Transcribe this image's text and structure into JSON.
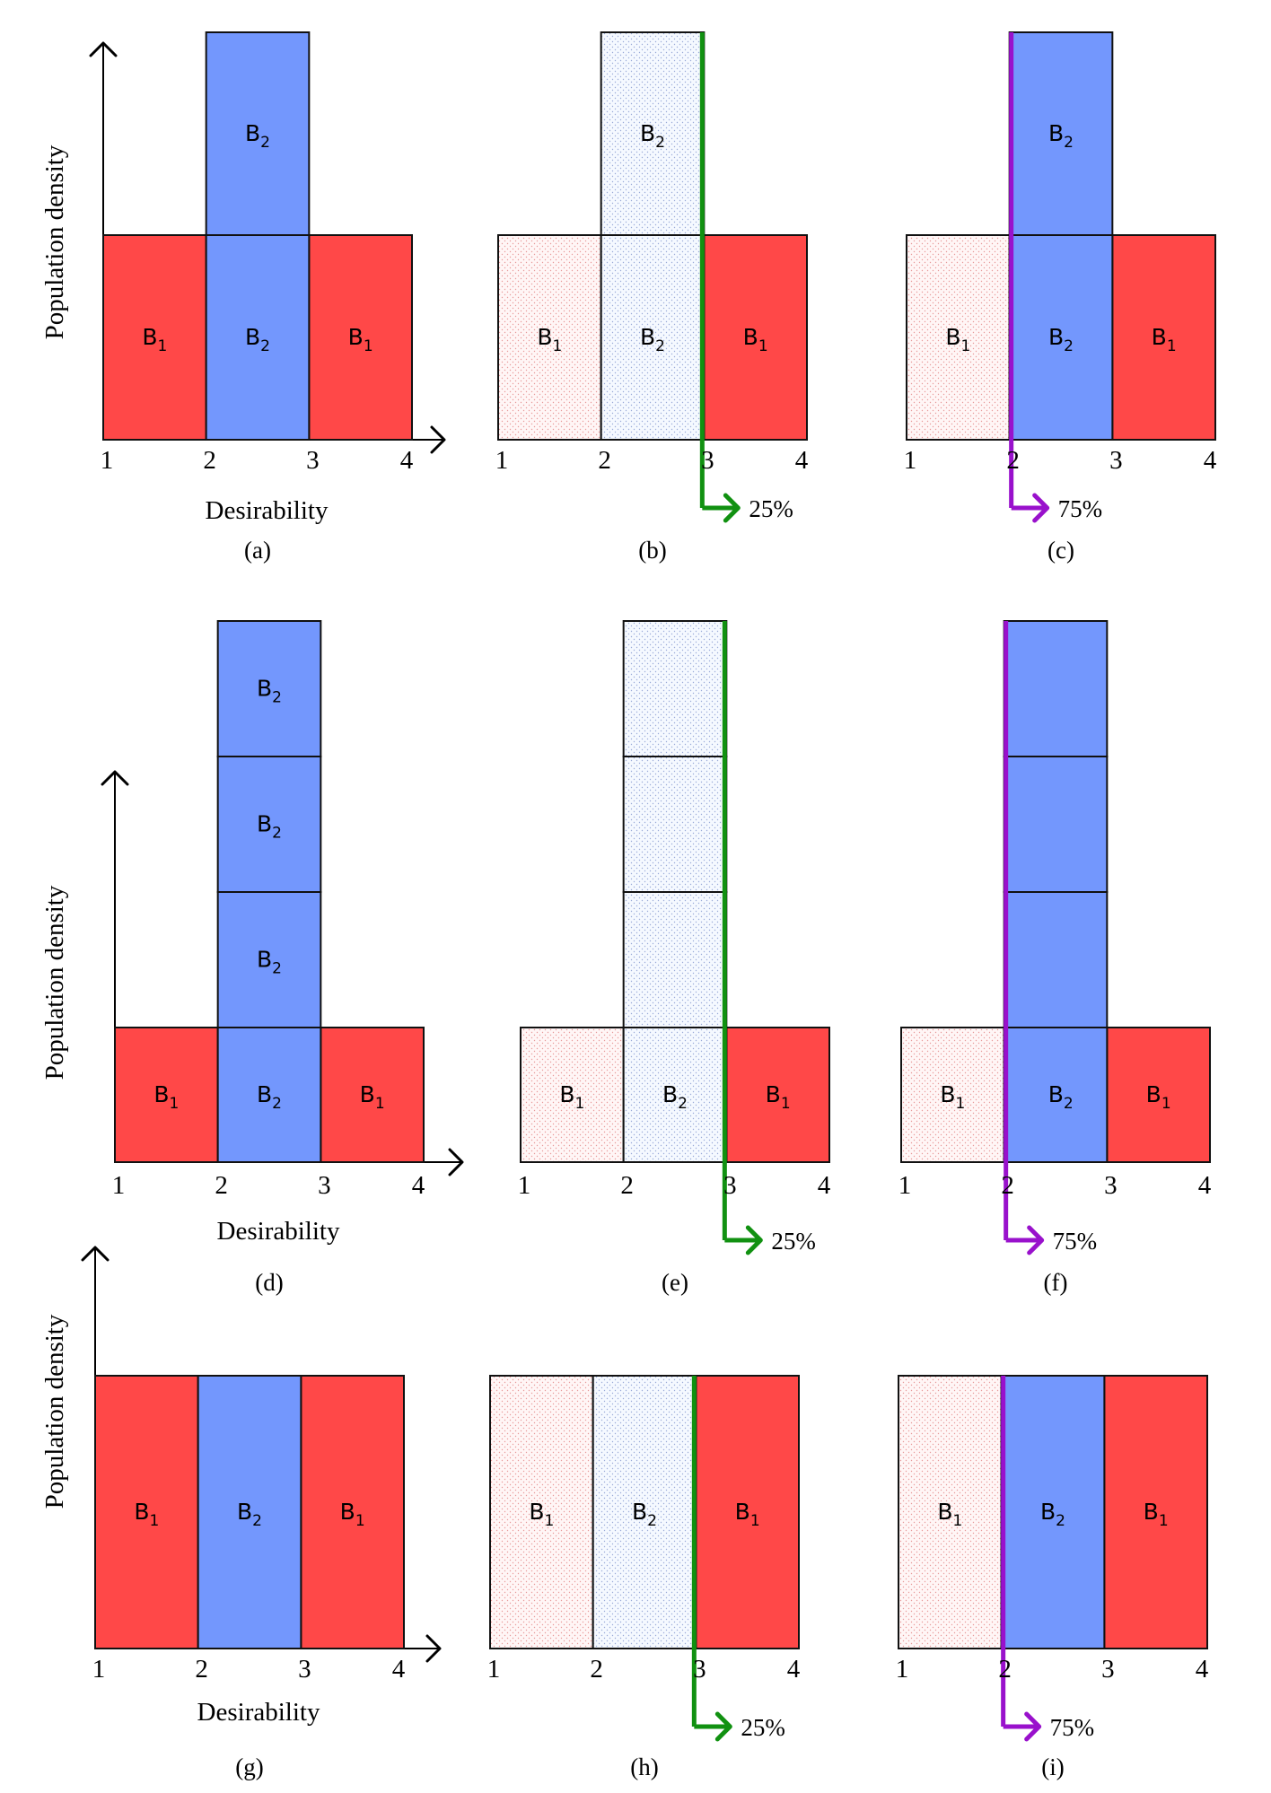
{
  "colors": {
    "B1": "#ff4848",
    "B2": "#7397fd",
    "B1_shaded": "#fff6f6",
    "B2_shaded": "#f5f9ff",
    "stroke": "#111111",
    "green": "#119111",
    "purple": "#9911cc"
  },
  "axis_labels": {
    "y": "Population density",
    "x": "Desirability"
  },
  "tick_labels": [
    "1",
    "2",
    "3",
    "4"
  ],
  "block_names": {
    "B1": "B",
    "B2": "B"
  },
  "block_subscripts": {
    "B1": "1",
    "B2": "2"
  },
  "percent_labels": {
    "low": "25%",
    "high": "75%"
  },
  "captions": [
    "(a)",
    "(b)",
    "(c)",
    "(d)",
    "(e)",
    "(f)",
    "(g)",
    "(h)",
    "(i)"
  ],
  "rows": [
    {
      "name": "row-1",
      "center_blocks_stacked": 2,
      "label_top_block": true
    },
    {
      "name": "row-2",
      "center_blocks_stacked": 4,
      "label_top_block": true
    },
    {
      "name": "row-3",
      "center_blocks_stacked": 1,
      "label_top_block": false
    }
  ],
  "panels": [
    {
      "id": "a",
      "row": 0,
      "split_fraction": null,
      "color": null,
      "shaded": []
    },
    {
      "id": "b",
      "row": 0,
      "split_fraction": 0.25,
      "color": "green",
      "shaded": [
        "left",
        "center"
      ]
    },
    {
      "id": "c",
      "row": 0,
      "split_fraction": 0.75,
      "color": "purple",
      "shaded": [
        "left"
      ]
    },
    {
      "id": "d",
      "row": 1,
      "split_fraction": null,
      "color": null,
      "shaded": []
    },
    {
      "id": "e",
      "row": 1,
      "split_fraction": 0.25,
      "color": "green",
      "shaded": [
        "left",
        "center"
      ]
    },
    {
      "id": "f",
      "row": 1,
      "split_fraction": 0.75,
      "color": "purple",
      "shaded": [
        "left"
      ]
    },
    {
      "id": "g",
      "row": 2,
      "split_fraction": null,
      "color": null,
      "shaded": []
    },
    {
      "id": "h",
      "row": 2,
      "split_fraction": 0.25,
      "color": "green",
      "shaded": [
        "left",
        "center"
      ]
    },
    {
      "id": "i",
      "row": 2,
      "split_fraction": 0.75,
      "color": "purple",
      "shaded": [
        "left"
      ]
    }
  ]
}
